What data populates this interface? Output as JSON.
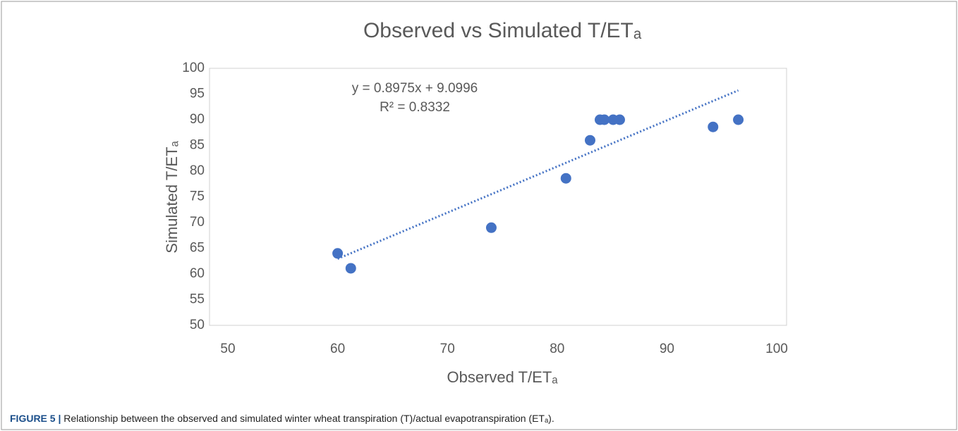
{
  "chart_data": {
    "type": "scatter",
    "title": "Observed vs Simulated T/ETₐ",
    "x_label": "Observed T/ETₐ",
    "y_label": "Simulated T/ETₐ",
    "x": [
      60,
      61.2,
      74,
      80.8,
      83,
      83.9,
      84.3,
      85.1,
      85.7,
      94.2,
      96.5
    ],
    "series": [
      {
        "color": "#4472c4",
        "values": [
          64,
          61.1,
          69,
          78.6,
          86,
          90,
          90,
          90,
          90,
          88.6,
          90
        ]
      }
    ],
    "xlim": [
      50,
      100
    ],
    "xticks": [
      50,
      60,
      70,
      80,
      90,
      100
    ],
    "ylim": [
      50,
      100
    ],
    "yticks": [
      50,
      55,
      60,
      65,
      70,
      75,
      80,
      85,
      90,
      95,
      100
    ],
    "grid": false,
    "trendline": {
      "slope": 0.8975,
      "intercept": 9.0996,
      "color": "#4472c4",
      "equation": "y = 0.8975x + 9.0996",
      "r2": "R² = 0.8332"
    }
  },
  "caption": {
    "label": "FIGURE 5 |",
    "text": "Relationship between the observed and simulated winter wheat transpiration (T)/actual evapotranspiration (ETₐ)."
  }
}
